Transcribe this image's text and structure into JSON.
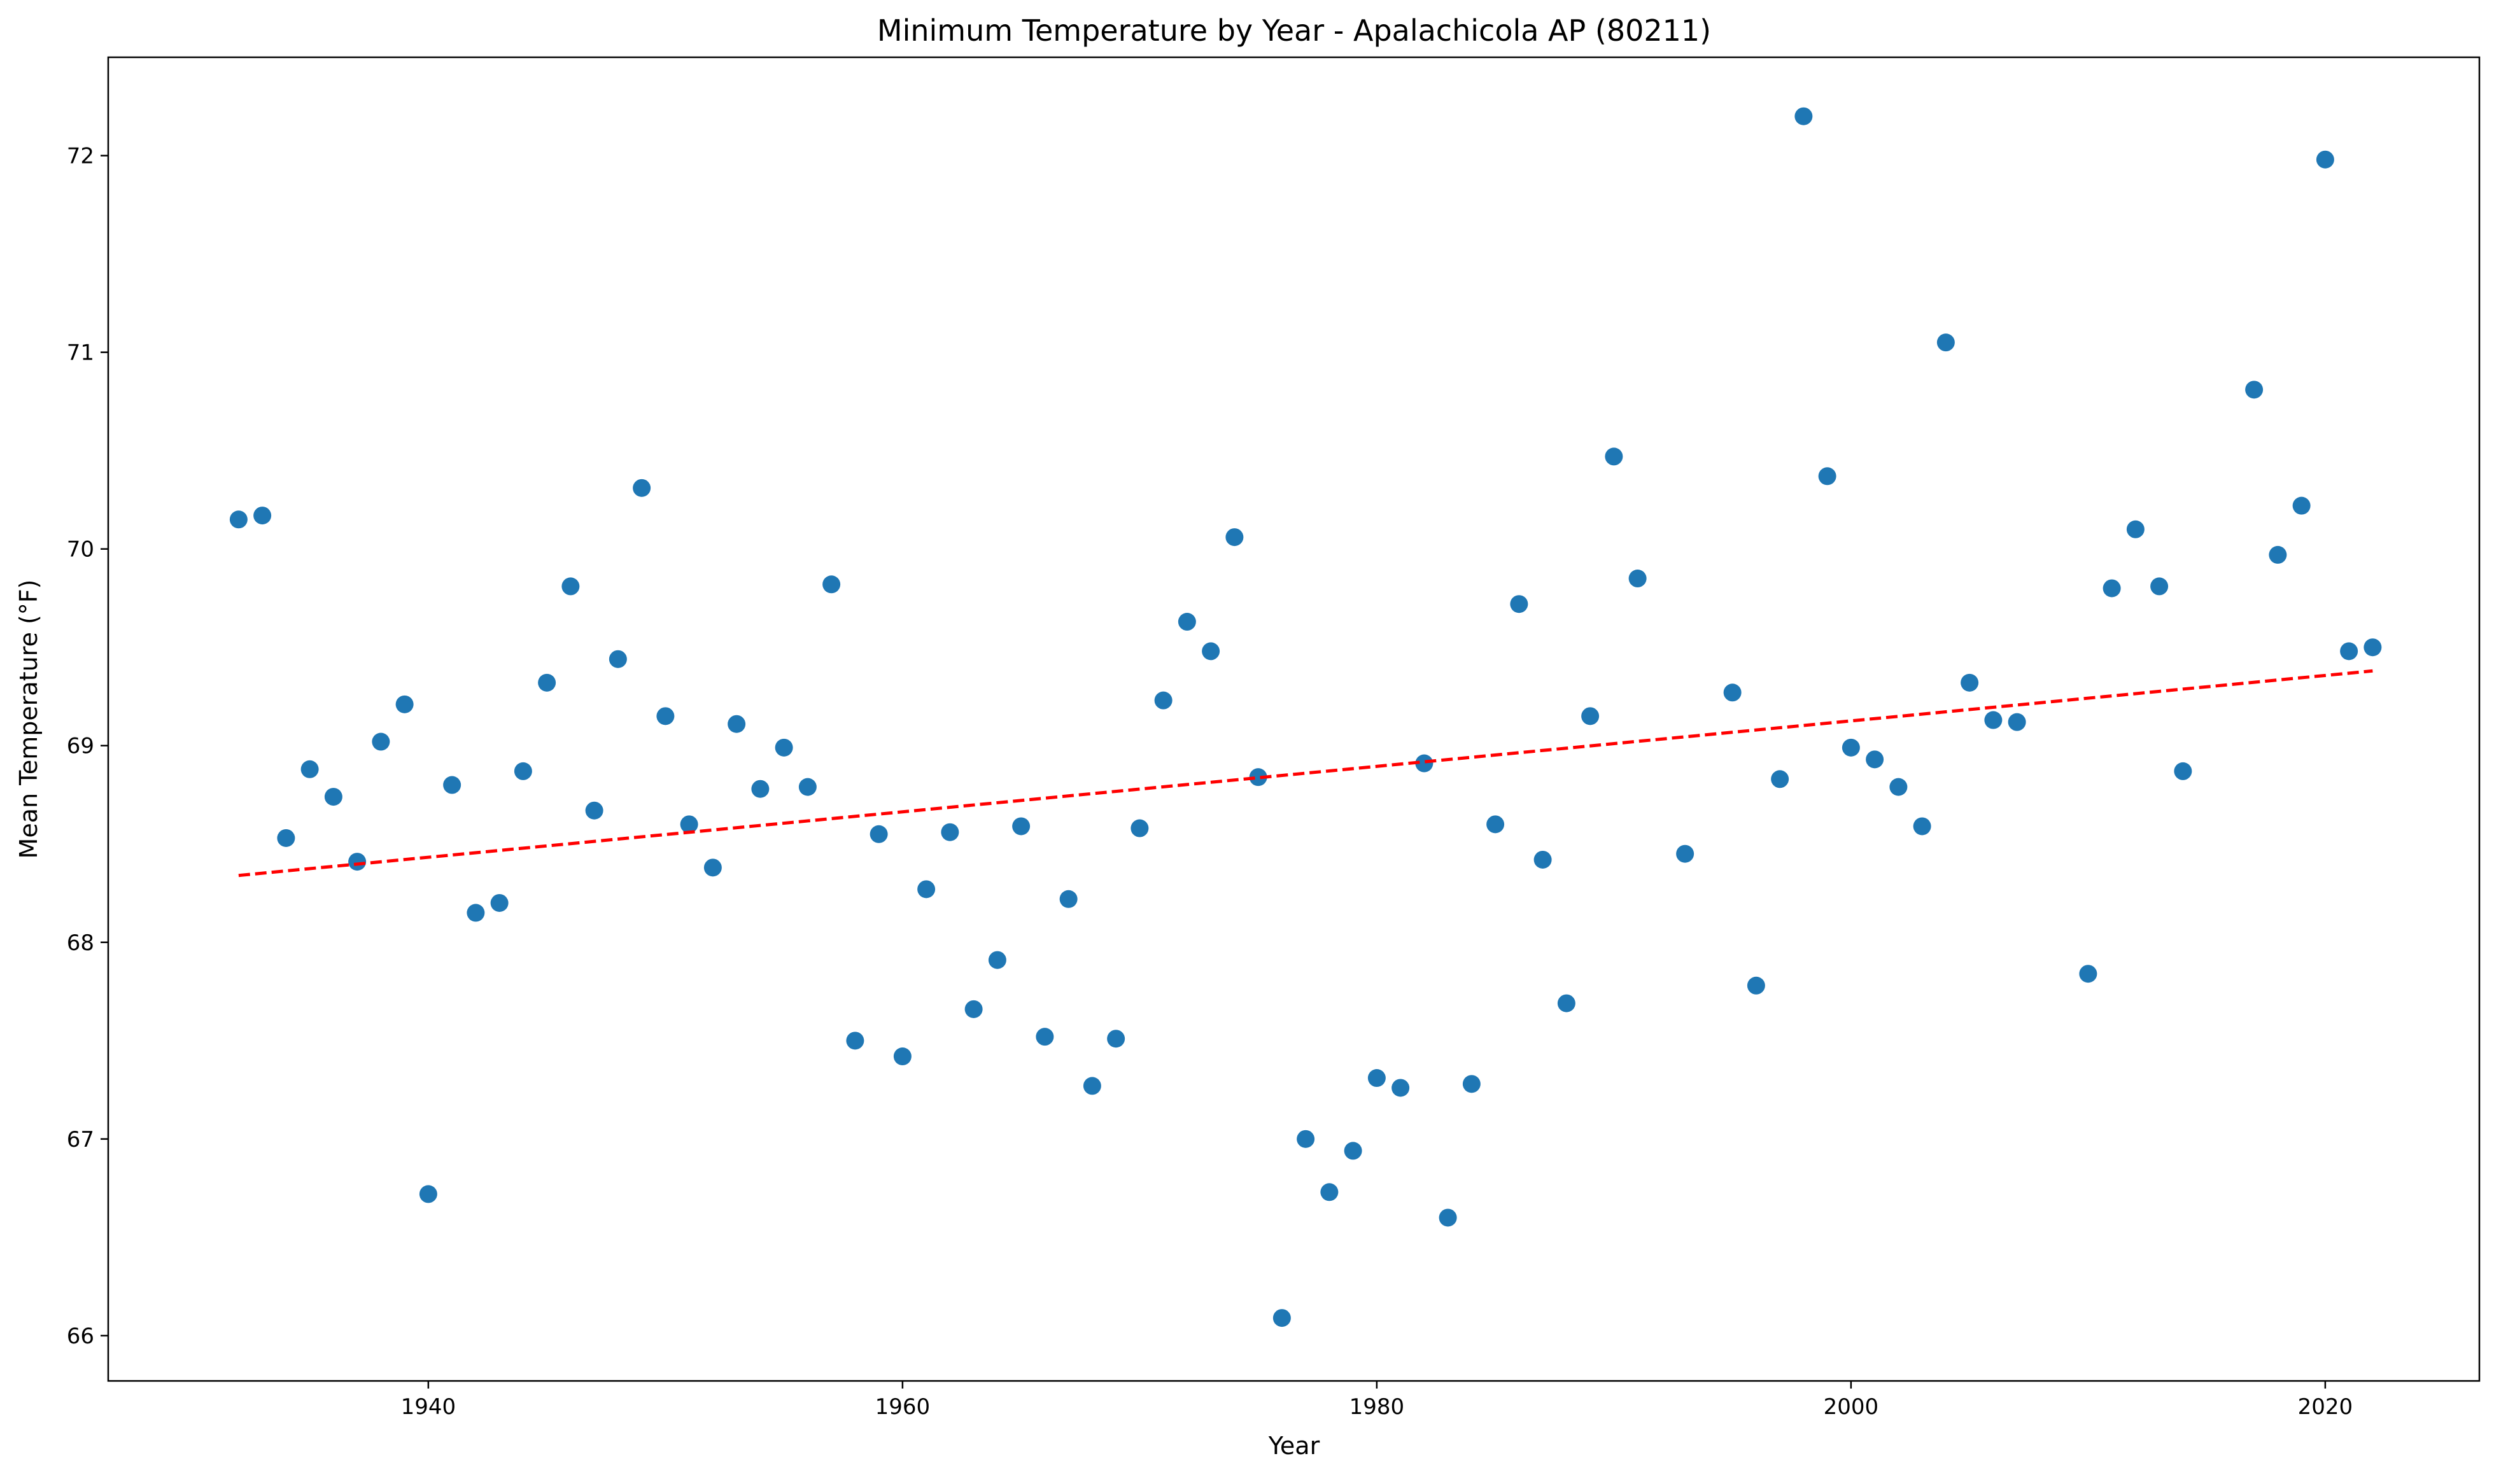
{
  "chart_data": {
    "type": "scatter",
    "title": "Minimum Temperature by Year - Apalachicola AP (80211)",
    "xlabel": "Year",
    "ylabel": "Mean Temperature (°F)",
    "xlim": [
      1926.5,
      2026.5
    ],
    "ylim": [
      65.77,
      72.5
    ],
    "xticks": [
      1940,
      1960,
      1980,
      2000,
      2020
    ],
    "yticks": [
      66,
      67,
      68,
      69,
      70,
      71,
      72
    ],
    "grid": false,
    "legend": "none",
    "series": [
      {
        "type": "scatter",
        "color": "#1f77b4",
        "points": [
          [
            1932,
            70.15
          ],
          [
            1933,
            70.17
          ],
          [
            1934,
            68.53
          ],
          [
            1935,
            68.88
          ],
          [
            1936,
            68.74
          ],
          [
            1937,
            68.41
          ],
          [
            1938,
            69.02
          ],
          [
            1939,
            69.21
          ],
          [
            1940,
            66.72
          ],
          [
            1941,
            68.8
          ],
          [
            1942,
            68.15
          ],
          [
            1943,
            68.2
          ],
          [
            1944,
            68.87
          ],
          [
            1945,
            69.32
          ],
          [
            1946,
            69.81
          ],
          [
            1947,
            68.67
          ],
          [
            1948,
            69.44
          ],
          [
            1949,
            70.31
          ],
          [
            1950,
            69.15
          ],
          [
            1951,
            68.6
          ],
          [
            1952,
            68.38
          ],
          [
            1953,
            69.11
          ],
          [
            1954,
            68.78
          ],
          [
            1955,
            68.99
          ],
          [
            1956,
            68.79
          ],
          [
            1957,
            69.82
          ],
          [
            1958,
            67.5
          ],
          [
            1959,
            68.55
          ],
          [
            1960,
            67.42
          ],
          [
            1961,
            68.27
          ],
          [
            1962,
            68.56
          ],
          [
            1963,
            67.66
          ],
          [
            1964,
            67.91
          ],
          [
            1965,
            68.59
          ],
          [
            1966,
            67.52
          ],
          [
            1967,
            68.22
          ],
          [
            1968,
            67.27
          ],
          [
            1969,
            67.51
          ],
          [
            1970,
            68.58
          ],
          [
            1971,
            69.23
          ],
          [
            1972,
            69.63
          ],
          [
            1973,
            69.48
          ],
          [
            1974,
            70.06
          ],
          [
            1975,
            68.84
          ],
          [
            1976,
            66.09
          ],
          [
            1977,
            67.0
          ],
          [
            1978,
            66.73
          ],
          [
            1979,
            66.94
          ],
          [
            1980,
            67.31
          ],
          [
            1981,
            67.26
          ],
          [
            1982,
            68.91
          ],
          [
            1983,
            66.6
          ],
          [
            1984,
            67.28
          ],
          [
            1985,
            68.6
          ],
          [
            1986,
            69.72
          ],
          [
            1987,
            68.42
          ],
          [
            1988,
            67.69
          ],
          [
            1989,
            69.15
          ],
          [
            1990,
            70.47
          ],
          [
            1991,
            69.85
          ],
          [
            1993,
            68.45
          ],
          [
            1995,
            69.27
          ],
          [
            1996,
            67.78
          ],
          [
            1997,
            68.83
          ],
          [
            1998,
            72.2
          ],
          [
            1999,
            70.37
          ],
          [
            2000,
            68.99
          ],
          [
            2001,
            68.93
          ],
          [
            2002,
            68.79
          ],
          [
            2003,
            68.59
          ],
          [
            2004,
            71.05
          ],
          [
            2005,
            69.32
          ],
          [
            2006,
            69.13
          ],
          [
            2007,
            69.12
          ],
          [
            2010,
            67.84
          ],
          [
            2011,
            69.8
          ],
          [
            2012,
            70.1
          ],
          [
            2013,
            69.81
          ],
          [
            2014,
            68.87
          ],
          [
            2017,
            70.81
          ],
          [
            2018,
            69.97
          ],
          [
            2019,
            70.22
          ],
          [
            2020,
            71.98
          ],
          [
            2021,
            69.48
          ],
          [
            2022,
            69.5
          ]
        ]
      },
      {
        "type": "line",
        "style": "dashed",
        "color": "#ff0000",
        "points": [
          [
            1932,
            68.34
          ],
          [
            2022,
            69.38
          ]
        ]
      }
    ]
  }
}
